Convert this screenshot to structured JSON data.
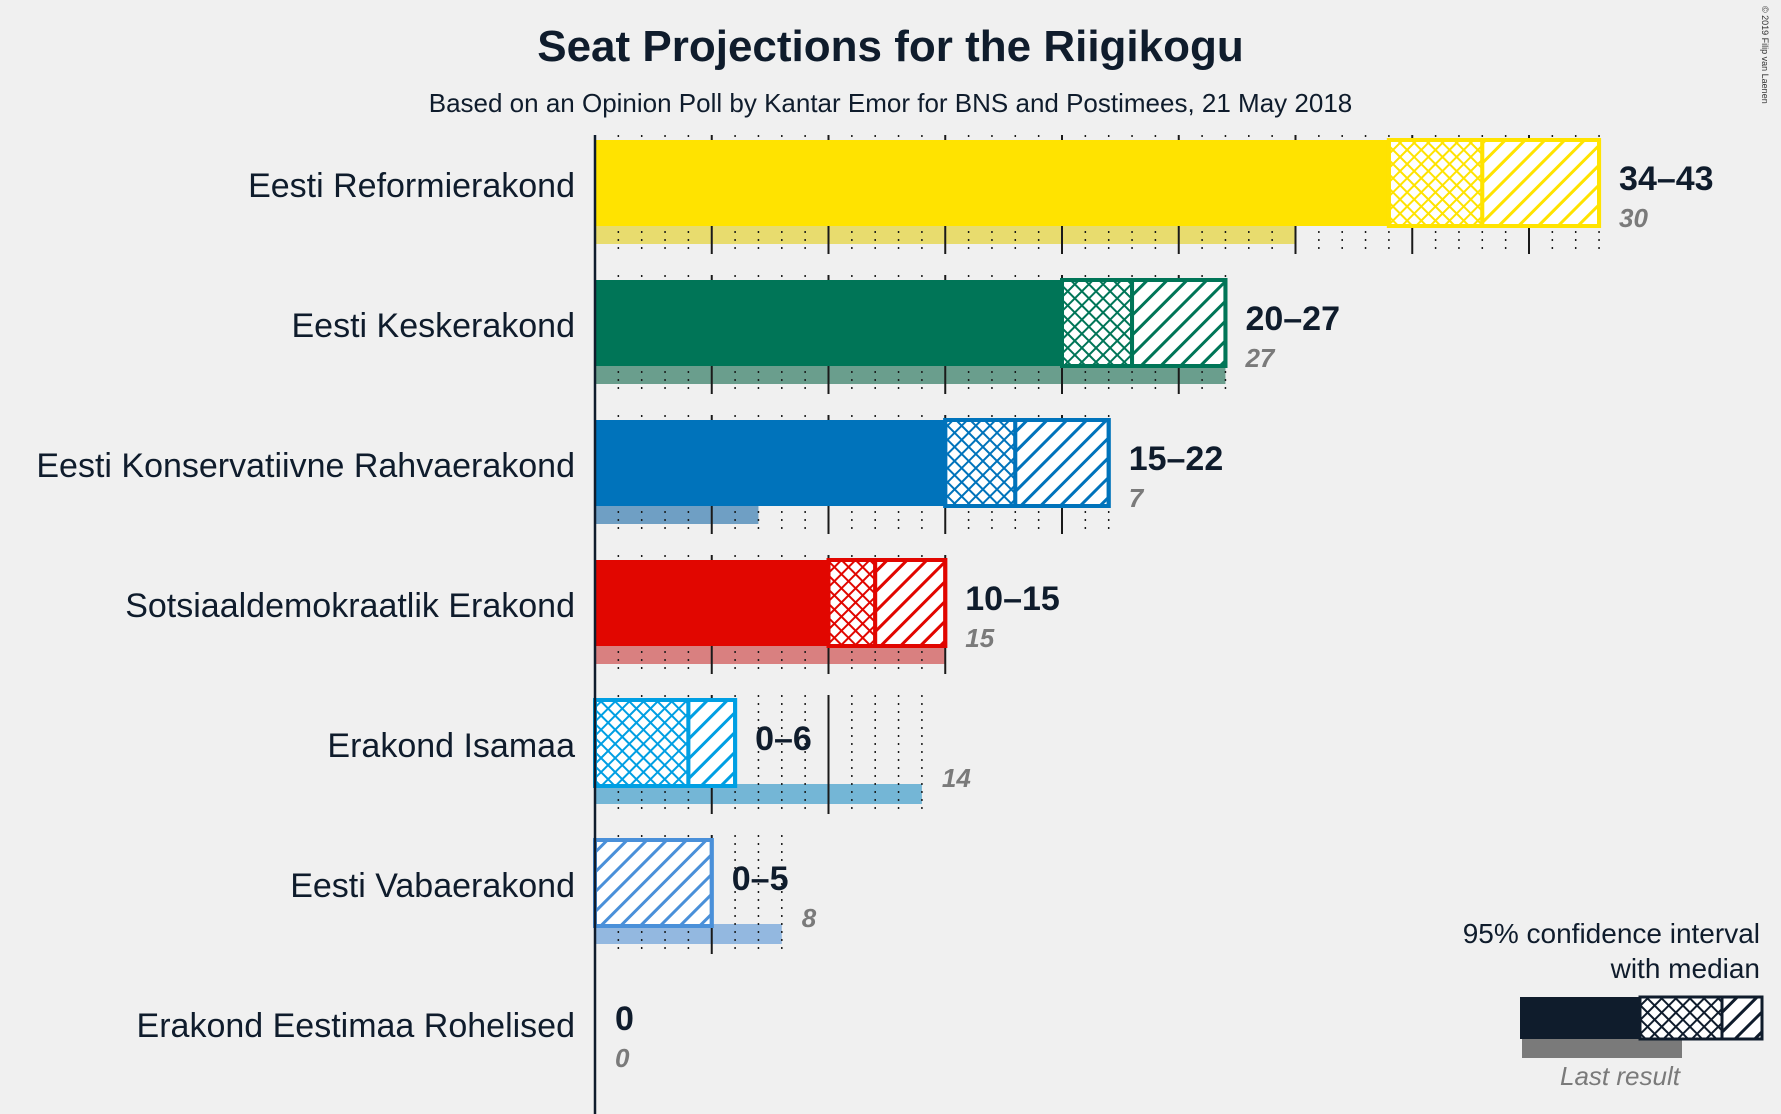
{
  "chart_data": {
    "type": "bar",
    "orientation": "horizontal",
    "title": "Seat Projections for the Riigikogu",
    "subtitle": "Based on an Opinion Poll by Kantar Emor for BNS and Postimees, 21 May 2018",
    "copyright": "© 2019 Filip van Laenen",
    "xlim": [
      0,
      43
    ],
    "categories": [
      "Eesti Reformierakond",
      "Eesti Keskerakond",
      "Eesti Konservatiivne Rahvaerakond",
      "Sotsiaaldemokraatlik Erakond",
      "Erakond Isamaa",
      "Eesti Vabaerakond",
      "Erakond Eestimaa Rohelised"
    ],
    "parties": [
      {
        "name": "Eesti Reformierakond",
        "low": 34,
        "median": 38,
        "high": 43,
        "last_result": 30,
        "range_label": "34–43",
        "last_label": "30",
        "color": "#ffe300",
        "last_color": "#e8dc6e"
      },
      {
        "name": "Eesti Keskerakond",
        "low": 20,
        "median": 23,
        "high": 27,
        "last_result": 27,
        "range_label": "20–27",
        "last_label": "27",
        "color": "#007557",
        "last_color": "#6a9e8d"
      },
      {
        "name": "Eesti Konservatiivne Rahvaerakond",
        "low": 15,
        "median": 18,
        "high": 22,
        "last_result": 7,
        "range_label": "15–22",
        "last_label": "7",
        "color": "#0073bb",
        "last_color": "#6f9fc4"
      },
      {
        "name": "Sotsiaaldemokraatlik Erakond",
        "low": 10,
        "median": 12,
        "high": 15,
        "last_result": 15,
        "range_label": "10–15",
        "last_label": "15",
        "color": "#e10600",
        "last_color": "#d98080"
      },
      {
        "name": "Erakond Isamaa",
        "low": 0,
        "median": 4,
        "high": 6,
        "last_result": 14,
        "range_label": "0–6",
        "last_label": "14",
        "color": "#009fe3",
        "last_color": "#74b6d6"
      },
      {
        "name": "Eesti Vabaerakond",
        "low": 0,
        "median": 0,
        "high": 5,
        "last_result": 8,
        "range_label": "0–5",
        "last_label": "8",
        "color": "#4a90d9",
        "last_color": "#93b8e0"
      },
      {
        "name": "Erakond Eestimaa Rohelised",
        "low": 0,
        "median": 0,
        "high": 0,
        "last_result": 0,
        "range_label": "0",
        "last_label": "0",
        "color": "#4a4a4a",
        "last_color": "#999999"
      }
    ],
    "legend": {
      "line1": "95% confidence interval",
      "line2": "with median",
      "last_result": "Last result",
      "placement": "bottom-right"
    },
    "grid": true
  }
}
